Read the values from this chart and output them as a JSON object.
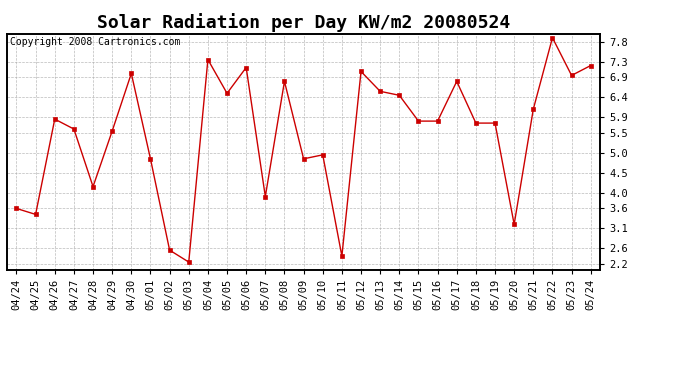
{
  "title": "Solar Radiation per Day KW/m2 20080524",
  "copyright": "Copyright 2008 Cartronics.com",
  "labels": [
    "04/24",
    "04/25",
    "04/26",
    "04/27",
    "04/28",
    "04/29",
    "04/30",
    "05/01",
    "05/02",
    "05/03",
    "05/04",
    "05/05",
    "05/06",
    "05/07",
    "05/08",
    "05/09",
    "05/10",
    "05/11",
    "05/12",
    "05/13",
    "05/14",
    "05/15",
    "05/16",
    "05/17",
    "05/18",
    "05/19",
    "05/20",
    "05/21",
    "05/22",
    "05/23",
    "05/24"
  ],
  "values": [
    3.6,
    3.45,
    5.85,
    5.6,
    4.15,
    5.55,
    7.0,
    4.85,
    2.55,
    2.25,
    7.35,
    6.5,
    7.15,
    3.9,
    6.8,
    4.85,
    4.95,
    2.4,
    7.05,
    6.55,
    6.45,
    5.8,
    5.8,
    6.8,
    5.75,
    5.75,
    3.2,
    6.1,
    7.9,
    6.95,
    7.2
  ],
  "line_color": "#cc0000",
  "marker_color": "#cc0000",
  "bg_color": "#ffffff",
  "plot_bg_color": "#ffffff",
  "grid_color": "#aaaaaa",
  "title_fontsize": 13,
  "copyright_fontsize": 7,
  "tick_fontsize": 7.5,
  "ylim": [
    2.05,
    8.0
  ],
  "yticks": [
    2.2,
    2.6,
    3.1,
    3.6,
    4.0,
    4.5,
    5.0,
    5.5,
    5.9,
    6.4,
    6.9,
    7.3,
    7.8
  ]
}
